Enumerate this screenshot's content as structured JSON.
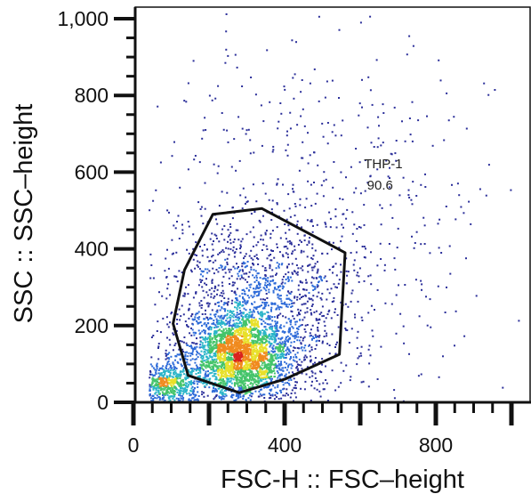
{
  "chart_data": {
    "type": "scatter",
    "title": "",
    "xlabel": "FSC-H :: FSC–height",
    "ylabel": "SSC :: SSC–height",
    "xlim": [
      0,
      1024
    ],
    "ylim": [
      0,
      1024
    ],
    "x_ticks": [
      {
        "value": 0,
        "label": "0"
      },
      {
        "value": 400,
        "label": "400"
      },
      {
        "value": 800,
        "label": "800"
      }
    ],
    "y_ticks": [
      {
        "value": 0,
        "label": "0"
      },
      {
        "value": 200,
        "label": "200"
      },
      {
        "value": 400,
        "label": "400"
      },
      {
        "value": 600,
        "label": "600"
      },
      {
        "value": 800,
        "label": "800"
      },
      {
        "value": 1000,
        "label": "1,000"
      }
    ],
    "x_minor_step": 50,
    "y_minor_step": 50,
    "plot_style": "pseudocolor density dot plot",
    "density_colors": [
      "#2b2f9a",
      "#2e6bd8",
      "#2bb5c9",
      "#44c46a",
      "#e8e02a",
      "#f08a1e",
      "#d9231e"
    ],
    "populations": [
      {
        "description": "main cell cluster",
        "center": [
          280,
          120
        ],
        "spread": [
          65,
          55
        ],
        "share": 0.46
      },
      {
        "description": "broad cluster",
        "center": [
          330,
          230
        ],
        "spread": [
          115,
          115
        ],
        "share": 0.3
      },
      {
        "description": "low debris",
        "center": [
          90,
          50
        ],
        "spread": [
          40,
          30
        ],
        "share": 0.12
      },
      {
        "description": "scattered events",
        "center": [
          450,
          450
        ],
        "spread": [
          250,
          250
        ],
        "share": 0.12
      }
    ],
    "gate": {
      "name": "THP-1",
      "percentage": "90.6",
      "polygon": [
        [
          210,
          490
        ],
        [
          340,
          505
        ],
        [
          560,
          390
        ],
        [
          545,
          125
        ],
        [
          400,
          60
        ],
        [
          280,
          25
        ],
        [
          145,
          70
        ],
        [
          105,
          205
        ],
        [
          135,
          345
        ]
      ]
    }
  }
}
